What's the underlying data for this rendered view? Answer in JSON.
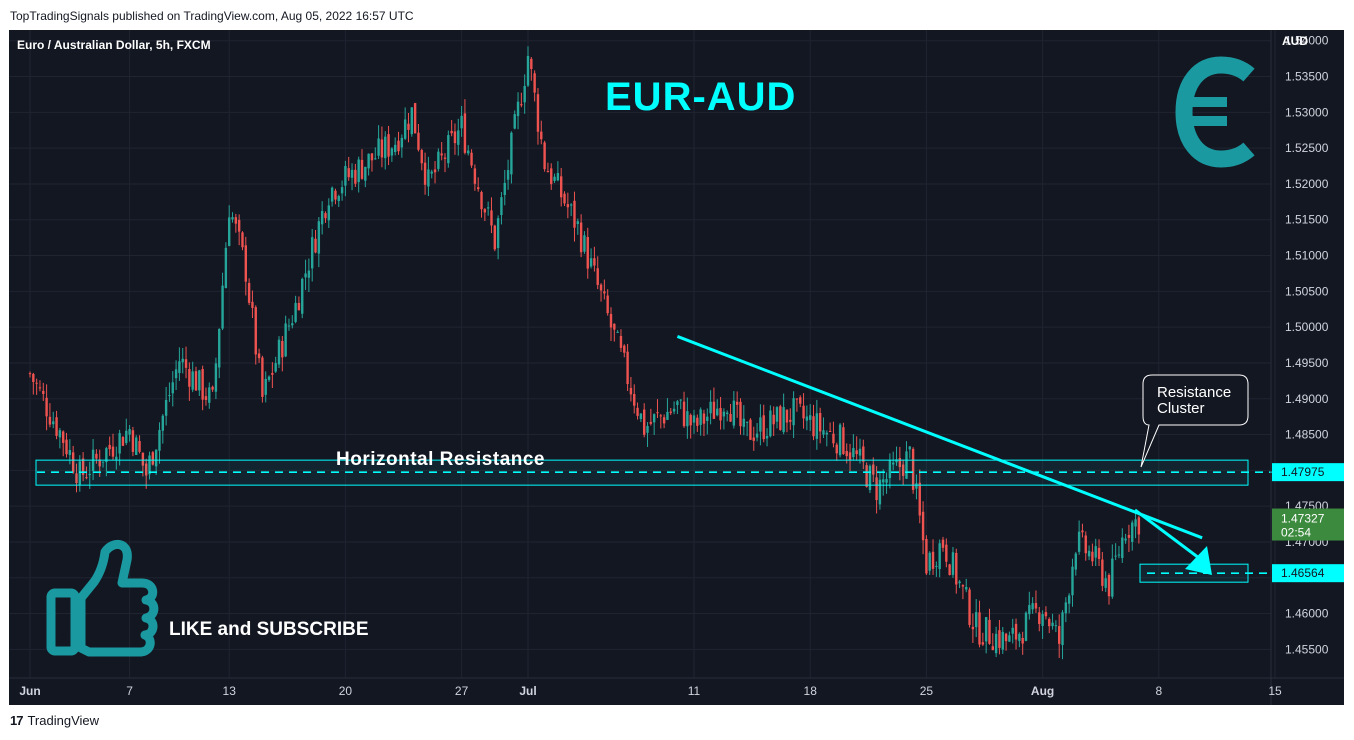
{
  "publisher_line": "TopTradingSignals published on TradingView.com, Aug 05, 2022 16:57 UTC",
  "footer_brand": "TradingView",
  "chart_data": {
    "type": "candlestick",
    "symbol_title": "Euro / Australian Dollar, 5h, FXCM",
    "headline": "EUR-AUD",
    "currency_unit": "AUD",
    "ylim": [
      1.451,
      1.5415
    ],
    "y_ticks": [
      "1.54000",
      "1.53500",
      "1.53000",
      "1.52500",
      "1.52000",
      "1.51500",
      "1.51000",
      "1.50500",
      "1.50000",
      "1.49500",
      "1.49000",
      "1.48500",
      "1.48000",
      "1.47500",
      "1.47000",
      "1.46500",
      "1.46000",
      "1.45500"
    ],
    "x_ticks": [
      "Jun",
      "7",
      "13",
      "20",
      "27",
      "Jul",
      "11",
      "18",
      "25",
      "Aug",
      "8",
      "15"
    ],
    "price_tags": {
      "resistance": "1.47975",
      "last_price": "1.47327",
      "countdown": "02:54",
      "target": "1.46564"
    },
    "annotations": {
      "horizontal_resistance": "Horizontal Resistance",
      "resistance_cluster": [
        "Resistance",
        "Cluster"
      ],
      "call_to_action": "LIKE and SUBSCRIBE"
    },
    "levels": {
      "resistance": 1.47975,
      "target": 1.46564,
      "last": 1.47327
    },
    "trendline": {
      "start": {
        "date": "Jul 10",
        "price": 1.4987
      },
      "end": {
        "date": "Aug 8",
        "price": 1.4729
      }
    },
    "price_path": [
      [
        1.4935,
        "Jun 1"
      ],
      [
        1.4845,
        "Jun 3"
      ],
      [
        1.4792,
        "Jun 4"
      ],
      [
        1.4858,
        "Jun 7"
      ],
      [
        1.4795,
        "Jun 8"
      ],
      [
        1.4955,
        "Jun 10"
      ],
      [
        1.4895,
        "Jun 12"
      ],
      [
        1.517,
        "Jun 13"
      ],
      [
        1.508,
        "Jun 14"
      ],
      [
        1.49,
        "Jun 15"
      ],
      [
        1.503,
        "Jun 17"
      ],
      [
        1.519,
        "Jun 19"
      ],
      [
        1.526,
        "Jun 23"
      ],
      [
        1.53,
        "Jun 24"
      ],
      [
        1.52,
        "Jun 25"
      ],
      [
        1.528,
        "Jun 27"
      ],
      [
        1.512,
        "Jun 29"
      ],
      [
        1.538,
        "Jul 1"
      ],
      [
        1.523,
        "Jul 2"
      ],
      [
        1.514,
        "Jul 4"
      ],
      [
        1.5,
        "Jul 6"
      ],
      [
        1.486,
        "Jul 8"
      ],
      [
        1.489,
        "Jul 10"
      ],
      [
        1.486,
        "Jul 11"
      ],
      [
        1.49,
        "Jul 13"
      ],
      [
        1.485,
        "Jul 14"
      ],
      [
        1.488,
        "Jul 17"
      ],
      [
        1.484,
        "Jul 20"
      ],
      [
        1.481,
        "Jul 21"
      ],
      [
        1.4775,
        "Jul 22"
      ],
      [
        1.482,
        "Jul 24"
      ],
      [
        1.467,
        "Jul 25"
      ],
      [
        1.47,
        "Jul 26"
      ],
      [
        1.458,
        "Jul 28"
      ],
      [
        1.456,
        "Jul 30"
      ],
      [
        1.461,
        "Aug 1"
      ],
      [
        1.456,
        "Aug 2"
      ],
      [
        1.47,
        "Aug 3"
      ],
      [
        1.468,
        "Aug 4"
      ],
      [
        1.464,
        "Aug 5"
      ],
      [
        1.472,
        "Aug 6"
      ],
      [
        1.4733,
        "Aug 7"
      ]
    ],
    "colors": {
      "background": "#131722",
      "up": "#26a69a",
      "down": "#ef5350",
      "accent": "#00ffff",
      "grid": "#1f2431",
      "axis_text": "#d1d4dc",
      "icon": "#1a9aa0",
      "last_price_bg": "#3b8a3e"
    }
  }
}
